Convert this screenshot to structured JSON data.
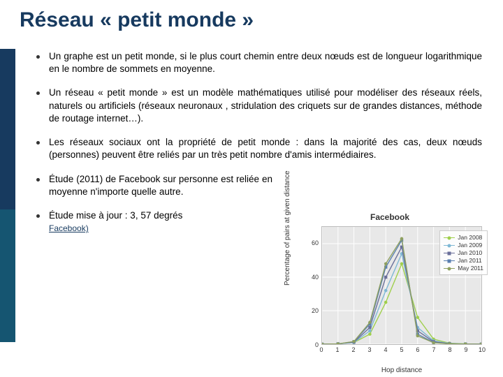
{
  "title": "Réseau « petit monde »",
  "bullets": [
    "Un graphe est un petit monde, si le plus court chemin entre deux nœuds est de longueur logarithmique en le nombre de sommets en moyenne.",
    "Un réseau « petit monde » est un modèle mathématiques utilisé pour modéliser des réseaux réels, naturels ou artificiels (réseaux neuronaux , stridulation des criquets sur de grandes distances, méthode de routage internet…).",
    "Les réseaux sociaux ont la propriété de petit monde  : dans la majorité des cas, deux nœuds (personnes) peuvent être reliés par un très petit nombre d'amis intermédiaires.",
    "Étude (2011) de Facebook sur personne est reliée en moyenne n'importe quelle autre.",
    "Étude mise à jour : 3, 57 degrés"
  ],
  "link_text": "Facebook)",
  "chart": {
    "title": "Facebook",
    "x_label": "Hop distance",
    "y_label": "Percentage of pairs at given distance",
    "x_ticks": [
      0,
      1,
      2,
      3,
      4,
      5,
      6,
      7,
      8,
      9,
      10
    ],
    "y_ticks": [
      0,
      20,
      40,
      60
    ],
    "xlim": [
      0,
      10
    ],
    "ylim": [
      0,
      70
    ],
    "background": "#e8e8e8",
    "grid_color": "#ffffff",
    "series": [
      {
        "name": "Jan 2008",
        "color": "#9fcf4b",
        "marker": "circle",
        "data": [
          [
            0,
            0
          ],
          [
            1,
            0.2
          ],
          [
            2,
            1
          ],
          [
            3,
            6
          ],
          [
            4,
            25
          ],
          [
            5,
            48
          ],
          [
            6,
            16
          ],
          [
            7,
            3
          ],
          [
            8,
            0.6
          ],
          [
            9,
            0.2
          ],
          [
            10,
            0.1
          ]
        ]
      },
      {
        "name": "Jan 2009",
        "color": "#7fb8d4",
        "marker": "circle",
        "data": [
          [
            0,
            0
          ],
          [
            1,
            0.2
          ],
          [
            2,
            1
          ],
          [
            3,
            8
          ],
          [
            4,
            32
          ],
          [
            5,
            54
          ],
          [
            6,
            10
          ],
          [
            7,
            2
          ],
          [
            8,
            0.4
          ],
          [
            9,
            0.15
          ],
          [
            10,
            0.07
          ]
        ]
      },
      {
        "name": "Jan 2010",
        "color": "#6a6f9a",
        "marker": "square",
        "data": [
          [
            0,
            0
          ],
          [
            1,
            0.2
          ],
          [
            2,
            1.2
          ],
          [
            3,
            10
          ],
          [
            4,
            40
          ],
          [
            5,
            58
          ],
          [
            6,
            8
          ],
          [
            7,
            1.5
          ],
          [
            8,
            0.3
          ],
          [
            9,
            0.1
          ],
          [
            10,
            0.05
          ]
        ]
      },
      {
        "name": "Jan 2011",
        "color": "#5a7fb0",
        "marker": "square",
        "data": [
          [
            0,
            0
          ],
          [
            1,
            0.2
          ],
          [
            2,
            1.5
          ],
          [
            3,
            12
          ],
          [
            4,
            46
          ],
          [
            5,
            62
          ],
          [
            6,
            6
          ],
          [
            7,
            1
          ],
          [
            8,
            0.2
          ],
          [
            9,
            0.08
          ],
          [
            10,
            0.04
          ]
        ]
      },
      {
        "name": "May 2011",
        "color": "#8fa060",
        "marker": "circle",
        "data": [
          [
            0,
            0
          ],
          [
            1,
            0.2
          ],
          [
            2,
            1.6
          ],
          [
            3,
            13
          ],
          [
            4,
            48
          ],
          [
            5,
            63
          ],
          [
            6,
            5
          ],
          [
            7,
            0.9
          ],
          [
            8,
            0.18
          ],
          [
            9,
            0.07
          ],
          [
            10,
            0.03
          ]
        ]
      }
    ]
  },
  "colors": {
    "title": "#173a5f",
    "accent_dark": "#173a5f",
    "accent_teal": "#0ea6a6"
  }
}
